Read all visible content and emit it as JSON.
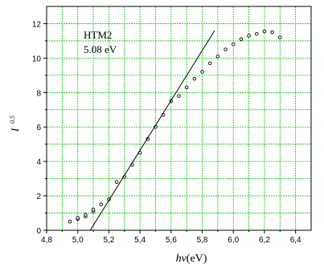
{
  "chart_data": {
    "type": "scatter",
    "annotation_lines": [
      "HTM2",
      "5.08 eV"
    ],
    "xlabel": {
      "italic_part": "hν",
      "unit": "(eV)"
    },
    "ylabel": {
      "base": "I",
      "exponent": "0.5"
    },
    "xlim": [
      4.8,
      6.5
    ],
    "ylim": [
      0,
      13
    ],
    "x_ticks": [
      "4,8",
      "5,0",
      "5,2",
      "5,4",
      "5,6",
      "5,8",
      "6,0",
      "6,2",
      "6,4"
    ],
    "x_tick_values": [
      4.8,
      5.0,
      5.2,
      5.4,
      5.6,
      5.8,
      6.0,
      6.2,
      6.4
    ],
    "y_ticks": [
      "0",
      "2",
      "4",
      "6",
      "8",
      "10",
      "12"
    ],
    "y_tick_values": [
      0,
      2,
      4,
      6,
      8,
      10,
      12
    ],
    "grid": true,
    "grid_color": "#00cc00",
    "points": [
      {
        "x": 4.95,
        "y": 0.5
      },
      {
        "x": 5.0,
        "y": 0.65
      },
      {
        "x": 5.0,
        "y": 0.72
      },
      {
        "x": 5.05,
        "y": 0.8
      },
      {
        "x": 5.05,
        "y": 0.9
      },
      {
        "x": 5.1,
        "y": 1.1
      },
      {
        "x": 5.1,
        "y": 1.2
      },
      {
        "x": 5.15,
        "y": 1.5
      },
      {
        "x": 5.2,
        "y": 1.8
      },
      {
        "x": 5.25,
        "y": 2.8
      },
      {
        "x": 5.3,
        "y": 3.1
      },
      {
        "x": 5.35,
        "y": 3.8
      },
      {
        "x": 5.4,
        "y": 4.5
      },
      {
        "x": 5.45,
        "y": 5.3
      },
      {
        "x": 5.5,
        "y": 6.0
      },
      {
        "x": 5.55,
        "y": 6.7
      },
      {
        "x": 5.6,
        "y": 7.5
      },
      {
        "x": 5.65,
        "y": 7.8
      },
      {
        "x": 5.7,
        "y": 8.3
      },
      {
        "x": 5.75,
        "y": 8.8
      },
      {
        "x": 5.8,
        "y": 9.2
      },
      {
        "x": 5.85,
        "y": 9.7
      },
      {
        "x": 5.9,
        "y": 10.1
      },
      {
        "x": 5.95,
        "y": 10.5
      },
      {
        "x": 6.0,
        "y": 10.8
      },
      {
        "x": 6.05,
        "y": 11.1
      },
      {
        "x": 6.1,
        "y": 11.3
      },
      {
        "x": 6.15,
        "y": 11.4
      },
      {
        "x": 6.2,
        "y": 11.55
      },
      {
        "x": 6.25,
        "y": 11.5
      },
      {
        "x": 6.3,
        "y": 11.2
      }
    ],
    "fit_line": {
      "x": [
        5.08,
        5.88
      ],
      "y": [
        0,
        11.6
      ]
    }
  }
}
